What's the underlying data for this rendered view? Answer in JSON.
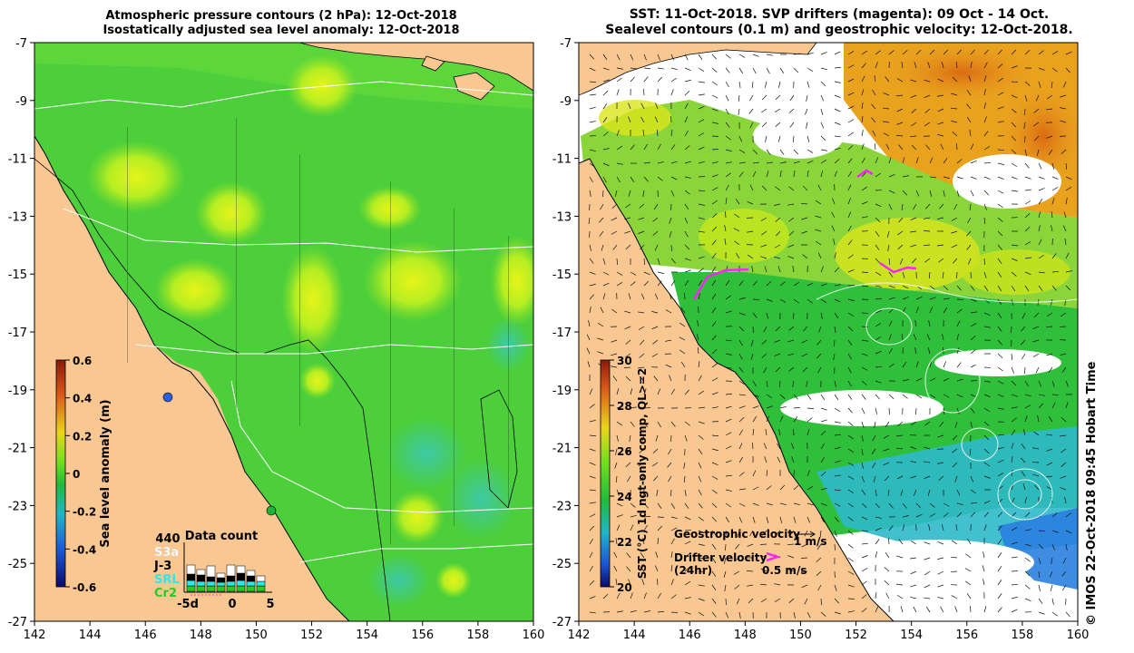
{
  "left_panel": {
    "title_line1": "Atmospheric pressure contours (2 hPa): 12-Oct-2018",
    "title_line2": "Isostatically adjusted sea level anomaly: 12-Oct-2018",
    "y_ticks": [
      "-7",
      "-9",
      "-11",
      "-13",
      "-15",
      "-17",
      "-19",
      "-21",
      "-23",
      "-25",
      "-27"
    ],
    "x_ticks": [
      "142",
      "144",
      "146",
      "148",
      "150",
      "152",
      "154",
      "156",
      "158",
      "160"
    ],
    "colorbar": {
      "label": "Sea level anomaly (m)",
      "ticks": [
        "0.6",
        "0.4",
        "0.2",
        "0",
        "-0.2",
        "-0.4",
        "-0.6"
      ]
    },
    "data_count": {
      "title": "Data count",
      "total": "440",
      "missions": [
        {
          "label": "S3a",
          "color": "#ffffff"
        },
        {
          "label": "J-3",
          "color": "#000000"
        },
        {
          "label": "SRL",
          "color": "#33e6e6"
        },
        {
          "label": "Cr2",
          "color": "#22cc22"
        }
      ],
      "x_labels": [
        "-5d",
        "0",
        "5"
      ]
    }
  },
  "right_panel": {
    "title_line1": "SST: 11-Oct-2018. SVP drifters (magenta): 09 Oct - 14 Oct.",
    "title_line2": "Sealevel contours (0.1 m) and geostrophic velocity: 12-Oct-2018.",
    "y_ticks": [
      "-7",
      "-9",
      "-11",
      "-13",
      "-15",
      "-17",
      "-19",
      "-21",
      "-23",
      "-25",
      "-27"
    ],
    "x_ticks": [
      "142",
      "144",
      "146",
      "148",
      "150",
      "152",
      "154",
      "156",
      "158",
      "160"
    ],
    "colorbar": {
      "label": "SST (°C) 1d ngt-only comp, QL>=2",
      "ticks": [
        "30",
        "28",
        "26",
        "24",
        "22",
        "20"
      ]
    },
    "legend": {
      "geo_label": "Geostrophic velocity",
      "geo_scale": "1 m/s",
      "drifter_label": "Drifter velocity",
      "drifter_sub": "(24hr)",
      "drifter_scale": "0.5 m/s"
    },
    "credit": "© IMOS 22-Oct-2018 09:45 Hobart Time"
  },
  "colors": {
    "land": "#f9c791",
    "sla_green": "#3fcc3f",
    "sla_yellow": "#b9f01e",
    "sst_orange": "#e48a1a",
    "sst_yellow": "#e7e51c",
    "sst_green": "#2fbf3a",
    "sst_cyan": "#2fb9c9",
    "drifter": "#ff22ff"
  }
}
